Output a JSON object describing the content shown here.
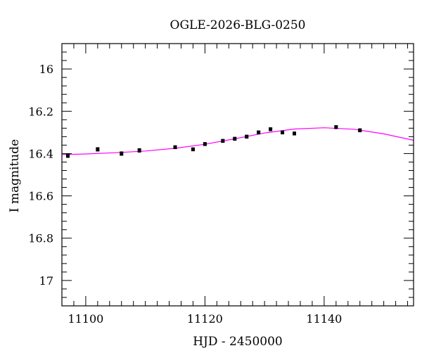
{
  "chart_data": {
    "type": "scatter",
    "title": "OGLE-2026-BLG-0250",
    "xlabel": "HJD - 2450000",
    "ylabel": "I magnitude",
    "xlim": [
      11096,
      11155
    ],
    "ylim": [
      17.12,
      15.88
    ],
    "y_inverted": true,
    "x_ticks": [
      11100,
      11120,
      11140
    ],
    "x_tick_labels": [
      "11100",
      "11120",
      "11140"
    ],
    "y_ticks": [
      16,
      16.2,
      16.4,
      16.6,
      16.8,
      17
    ],
    "y_tick_labels": [
      "16",
      "16.2",
      "16.4",
      "16.6",
      "16.8",
      "17"
    ],
    "grid": false,
    "series": [
      {
        "kind": "points-with-errorbars",
        "color": "#000000",
        "x": [
          11097.0,
          11102.0,
          11106.0,
          11109.0,
          11115.0,
          11118.0,
          11120.0,
          11123.0,
          11125.0,
          11127.0,
          11129.0,
          11131.0,
          11133.0,
          11135.0,
          11142.0,
          11146.0
        ],
        "y": [
          16.41,
          16.38,
          16.4,
          16.385,
          16.37,
          16.38,
          16.355,
          16.34,
          16.33,
          16.32,
          16.3,
          16.285,
          16.3,
          16.305,
          16.275,
          16.29
        ],
        "err": [
          0.008,
          0.008,
          0.008,
          0.008,
          0.007,
          0.007,
          0.007,
          0.007,
          0.007,
          0.007,
          0.007,
          0.007,
          0.007,
          0.007,
          0.007,
          0.007
        ]
      },
      {
        "kind": "model-curve",
        "color": "#ff00ff",
        "x": [
          11096,
          11100,
          11105,
          11110,
          11115,
          11120,
          11125,
          11130,
          11135,
          11140,
          11145,
          11150,
          11155
        ],
        "y": [
          16.405,
          16.402,
          16.396,
          16.388,
          16.375,
          16.356,
          16.33,
          16.303,
          16.284,
          16.278,
          16.285,
          16.307,
          16.337
        ]
      }
    ]
  }
}
